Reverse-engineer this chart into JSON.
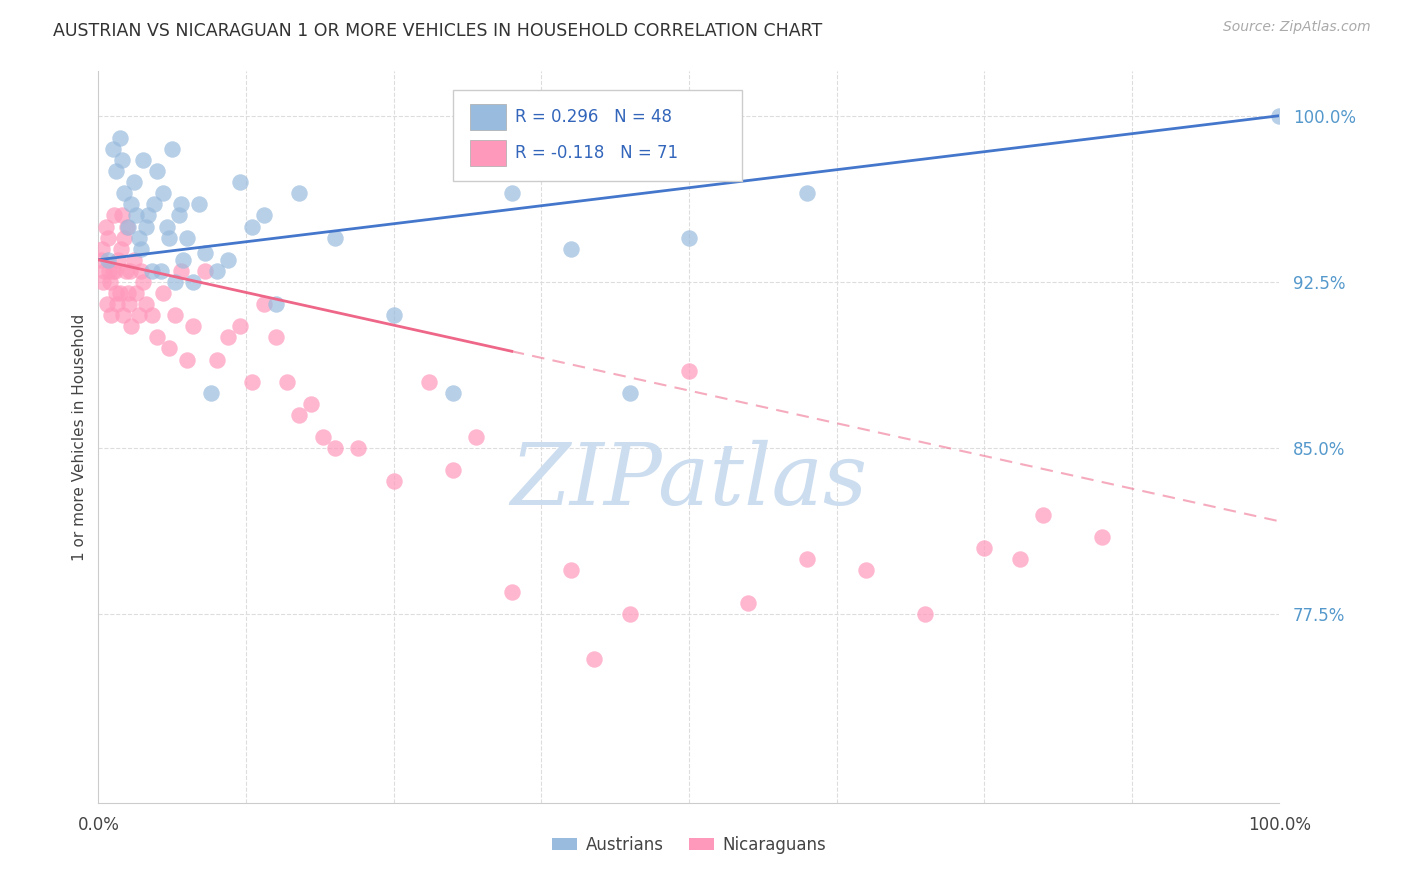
{
  "title": "AUSTRIAN VS NICARAGUAN 1 OR MORE VEHICLES IN HOUSEHOLD CORRELATION CHART",
  "source": "Source: ZipAtlas.com",
  "ylabel": "1 or more Vehicles in Household",
  "yticks": [
    77.5,
    85.0,
    92.5,
    100.0
  ],
  "ytick_labels": [
    "77.5%",
    "85.0%",
    "92.5%",
    "100.0%"
  ],
  "watermark_text": "ZIPatlas",
  "legend_blue_r": "0.296",
  "legend_blue_n": "48",
  "legend_pink_r": "-0.118",
  "legend_pink_n": "71",
  "blue_scatter_color": "#99BBDD",
  "pink_scatter_color": "#FF99BB",
  "blue_line_color": "#4477CC",
  "pink_line_color": "#EE6688",
  "background_color": "#FFFFFF",
  "grid_color": "#DDDDDD",
  "yaxis_color": "#5599CC",
  "title_color": "#333333",
  "source_color": "#AAAAAA",
  "watermark_color": "#CCDDF0",
  "xlim": [
    0,
    100
  ],
  "ylim": [
    69,
    102
  ],
  "austrians_x": [
    0.8,
    1.2,
    1.5,
    1.8,
    2.0,
    2.2,
    2.5,
    2.8,
    3.0,
    3.2,
    3.4,
    3.6,
    3.8,
    4.0,
    4.2,
    4.5,
    4.7,
    5.0,
    5.3,
    5.5,
    5.8,
    6.0,
    6.2,
    6.5,
    6.8,
    7.0,
    7.2,
    7.5,
    8.0,
    8.5,
    9.0,
    9.5,
    10.0,
    11.0,
    12.0,
    13.0,
    14.0,
    15.0,
    17.0,
    20.0,
    25.0,
    30.0,
    35.0,
    40.0,
    45.0,
    50.0,
    60.0,
    100.0
  ],
  "austrians_y": [
    93.5,
    98.5,
    97.5,
    99.0,
    98.0,
    96.5,
    95.0,
    96.0,
    97.0,
    95.5,
    94.5,
    94.0,
    98.0,
    95.0,
    95.5,
    93.0,
    96.0,
    97.5,
    93.0,
    96.5,
    95.0,
    94.5,
    98.5,
    92.5,
    95.5,
    96.0,
    93.5,
    94.5,
    92.5,
    96.0,
    93.8,
    87.5,
    93.0,
    93.5,
    97.0,
    95.0,
    95.5,
    91.5,
    96.5,
    94.5,
    91.0,
    87.5,
    96.5,
    94.0,
    87.5,
    94.5,
    96.5,
    100.0
  ],
  "nicaraguans_x": [
    0.2,
    0.3,
    0.4,
    0.5,
    0.6,
    0.7,
    0.8,
    0.9,
    1.0,
    1.1,
    1.2,
    1.3,
    1.4,
    1.5,
    1.6,
    1.7,
    1.8,
    1.9,
    2.0,
    2.1,
    2.2,
    2.3,
    2.4,
    2.5,
    2.6,
    2.7,
    2.8,
    3.0,
    3.2,
    3.4,
    3.6,
    3.8,
    4.0,
    4.5,
    5.0,
    5.5,
    6.0,
    6.5,
    7.0,
    7.5,
    8.0,
    9.0,
    10.0,
    11.0,
    12.0,
    13.0,
    14.0,
    15.0,
    16.0,
    17.0,
    18.0,
    19.0,
    20.0,
    22.0,
    25.0,
    28.0,
    30.0,
    32.0,
    35.0,
    40.0,
    42.0,
    45.0,
    50.0,
    55.0,
    60.0,
    65.0,
    70.0,
    75.0,
    78.0,
    80.0,
    85.0
  ],
  "nicaraguans_y": [
    93.5,
    94.0,
    92.5,
    93.0,
    95.0,
    91.5,
    94.5,
    93.0,
    92.5,
    91.0,
    93.0,
    95.5,
    93.0,
    92.0,
    91.5,
    93.5,
    92.0,
    94.0,
    95.5,
    91.0,
    94.5,
    93.0,
    95.0,
    92.0,
    91.5,
    93.0,
    90.5,
    93.5,
    92.0,
    91.0,
    93.0,
    92.5,
    91.5,
    91.0,
    90.0,
    92.0,
    89.5,
    91.0,
    93.0,
    89.0,
    90.5,
    93.0,
    89.0,
    90.0,
    90.5,
    88.0,
    91.5,
    90.0,
    88.0,
    86.5,
    87.0,
    85.5,
    85.0,
    85.0,
    83.5,
    88.0,
    84.0,
    85.5,
    78.5,
    79.5,
    75.5,
    77.5,
    88.5,
    78.0,
    80.0,
    79.5,
    77.5,
    80.5,
    80.0,
    82.0,
    81.0
  ]
}
